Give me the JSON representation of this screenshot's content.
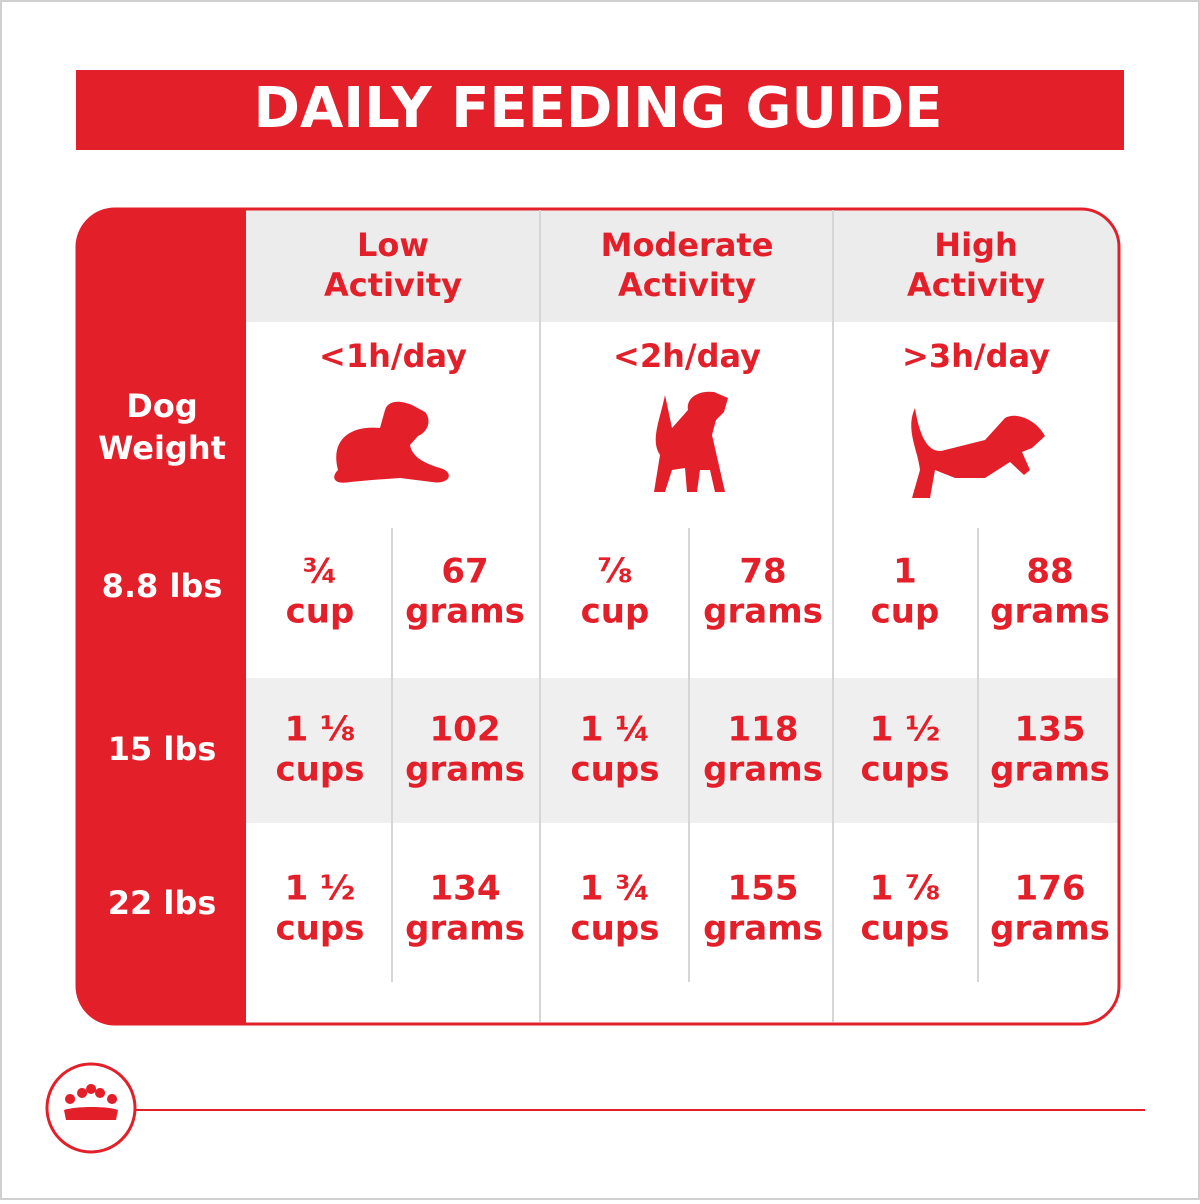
{
  "title": "DAILY FEEDING GUIDE",
  "row_header": [
    "Dog",
    "Weight"
  ],
  "columns": [
    {
      "name": [
        "Low",
        "Activity"
      ],
      "duration": "<1h/day"
    },
    {
      "name": [
        "Moderate",
        "Activity"
      ],
      "duration": "<2h/day"
    },
    {
      "name": [
        "High",
        "Activity"
      ],
      "duration": ">3h/day"
    }
  ],
  "rows": [
    {
      "weight": "8.8 lbs",
      "cells": [
        {
          "cups": [
            "¾",
            "cup"
          ],
          "grams": [
            "67",
            "grams"
          ]
        },
        {
          "cups": [
            "⅞",
            "cup"
          ],
          "grams": [
            "78",
            "grams"
          ]
        },
        {
          "cups": [
            "1",
            "cup"
          ],
          "grams": [
            "88",
            "grams"
          ]
        }
      ]
    },
    {
      "weight": "15 lbs",
      "cells": [
        {
          "cups": [
            "1 ⅛",
            "cups"
          ],
          "grams": [
            "102",
            "grams"
          ]
        },
        {
          "cups": [
            "1 ¼",
            "cups"
          ],
          "grams": [
            "118",
            "grams"
          ]
        },
        {
          "cups": [
            "1 ½",
            "cups"
          ],
          "grams": [
            "135",
            "grams"
          ]
        }
      ]
    },
    {
      "weight": "22 lbs",
      "cells": [
        {
          "cups": [
            "1 ½",
            "cups"
          ],
          "grams": [
            "134",
            "grams"
          ]
        },
        {
          "cups": [
            "1 ¾",
            "cups"
          ],
          "grams": [
            "155",
            "grams"
          ]
        },
        {
          "cups": [
            "1 ⅞",
            "cups"
          ],
          "grams": [
            "176",
            "grams"
          ]
        }
      ]
    }
  ]
}
